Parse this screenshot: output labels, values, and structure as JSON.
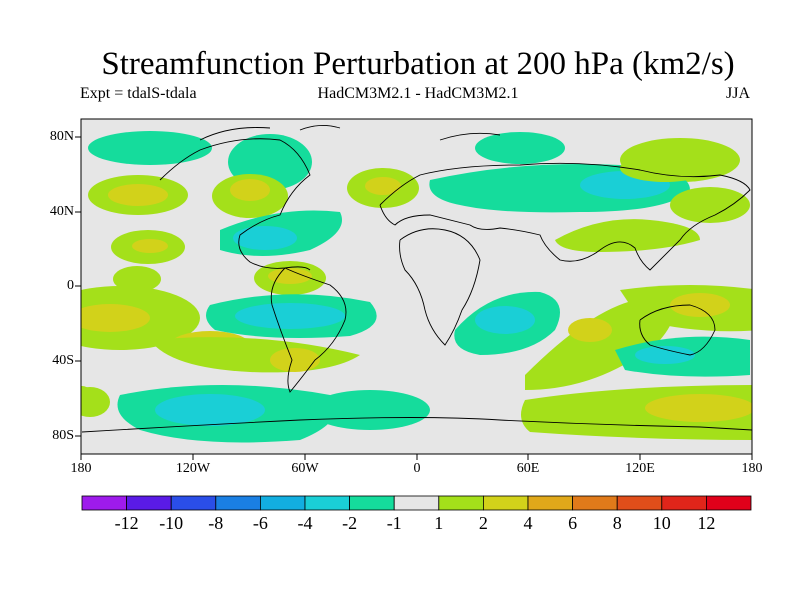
{
  "title": "Streamfunction Perturbation at 200 hPa (km2/s)",
  "experiment": "Expt = tdalS-tdala",
  "model": "HadCM3M2.1 - HadCM3M2.1",
  "season": "JJA",
  "lat_labels": [
    "80N",
    "40N",
    "0",
    "40S",
    "80S"
  ],
  "lon_labels": [
    "180",
    "120W",
    "60W",
    "0",
    "60E",
    "120E",
    "180"
  ],
  "colorbar": {
    "labels": [
      "-12",
      "-10",
      "-8",
      "-6",
      "-4",
      "-2",
      "-1",
      "1",
      "2",
      "4",
      "6",
      "8",
      "10",
      "12"
    ],
    "colors": [
      "#9e1bec",
      "#5a1be6",
      "#2a4ee8",
      "#1a7fe3",
      "#12aee0",
      "#1acfd6",
      "#15dc9c",
      "#e6e6e6",
      "#a4e01a",
      "#d2d21a",
      "#e0a81a",
      "#e07a1a",
      "#e04e1a",
      "#e0251a",
      "#e0001a"
    ]
  }
}
